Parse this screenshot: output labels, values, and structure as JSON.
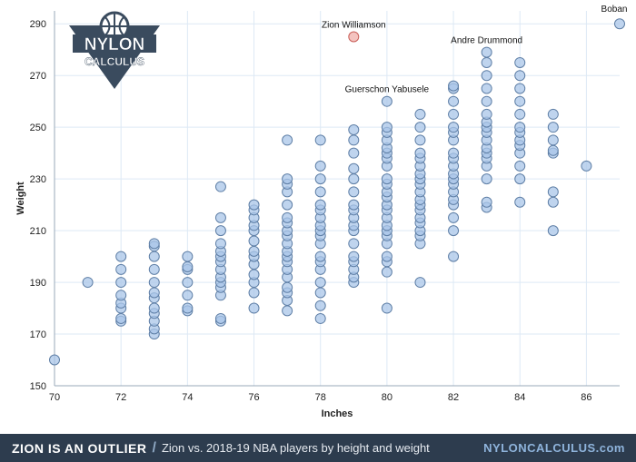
{
  "footer": {
    "title": "ZION IS AN OUTLIER",
    "slash": "/",
    "subtitle": "Zion vs. 2018-19 NBA players by height and weight",
    "site": "NYLONCALCULUS.com"
  },
  "logo": {
    "line1": "NYLON",
    "line2": "CALCULUS"
  },
  "colors": {
    "point_fill": "#a9c5e8",
    "point_stroke": "#5f7fa6",
    "highlight_fill": "#f2b8b4",
    "highlight_stroke": "#c9605a",
    "grid": "#dde9f5",
    "footer_bg": "#2d3c4e",
    "logo": "#3a4b5e"
  },
  "chart_data": {
    "type": "scatter",
    "xlabel": "Inches",
    "ylabel": "Weight",
    "xlim": [
      70,
      87
    ],
    "ylim": [
      150,
      295
    ],
    "xticks": [
      70,
      72,
      74,
      76,
      78,
      80,
      82,
      84,
      86
    ],
    "yticks": [
      150,
      170,
      190,
      210,
      230,
      250,
      270,
      290
    ],
    "grid": true,
    "annotations": [
      {
        "text": "Zion Williamson",
        "x": 79,
        "y": 285
      },
      {
        "text": "Boban",
        "x": 87,
        "y": 290
      },
      {
        "text": "Andre Drummond",
        "x": 83,
        "y": 279
      },
      {
        "text": "Guerschon Yabusele",
        "x": 80,
        "y": 260
      }
    ],
    "highlight": {
      "name": "Zion Williamson",
      "x": 79,
      "y": 285
    },
    "points": [
      [
        70,
        160
      ],
      [
        71,
        190
      ],
      [
        72,
        175
      ],
      [
        72,
        176
      ],
      [
        72,
        180
      ],
      [
        72,
        182
      ],
      [
        72,
        185
      ],
      [
        72,
        190
      ],
      [
        72,
        195
      ],
      [
        72,
        200
      ],
      [
        73,
        170
      ],
      [
        73,
        172
      ],
      [
        73,
        175
      ],
      [
        73,
        178
      ],
      [
        73,
        180
      ],
      [
        73,
        184
      ],
      [
        73,
        186
      ],
      [
        73,
        190
      ],
      [
        73,
        195
      ],
      [
        73,
        200
      ],
      [
        73,
        204
      ],
      [
        73,
        205
      ],
      [
        74,
        179
      ],
      [
        74,
        180
      ],
      [
        74,
        185
      ],
      [
        74,
        190
      ],
      [
        74,
        195
      ],
      [
        74,
        196
      ],
      [
        74,
        200
      ],
      [
        75,
        175
      ],
      [
        75,
        176
      ],
      [
        75,
        185
      ],
      [
        75,
        188
      ],
      [
        75,
        190
      ],
      [
        75,
        192
      ],
      [
        75,
        195
      ],
      [
        75,
        198
      ],
      [
        75,
        200
      ],
      [
        75,
        202
      ],
      [
        75,
        205
      ],
      [
        75,
        210
      ],
      [
        75,
        215
      ],
      [
        75,
        227
      ],
      [
        76,
        180
      ],
      [
        76,
        186
      ],
      [
        76,
        190
      ],
      [
        76,
        193
      ],
      [
        76,
        197
      ],
      [
        76,
        200
      ],
      [
        76,
        202
      ],
      [
        76,
        206
      ],
      [
        76,
        210
      ],
      [
        76,
        212
      ],
      [
        76,
        215
      ],
      [
        76,
        218
      ],
      [
        76,
        220
      ],
      [
        77,
        179
      ],
      [
        77,
        183
      ],
      [
        77,
        186
      ],
      [
        77,
        188
      ],
      [
        77,
        192
      ],
      [
        77,
        195
      ],
      [
        77,
        198
      ],
      [
        77,
        200
      ],
      [
        77,
        202
      ],
      [
        77,
        205
      ],
      [
        77,
        208
      ],
      [
        77,
        210
      ],
      [
        77,
        213
      ],
      [
        77,
        215
      ],
      [
        77,
        220
      ],
      [
        77,
        225
      ],
      [
        77,
        228
      ],
      [
        77,
        230
      ],
      [
        77,
        245
      ],
      [
        78,
        176
      ],
      [
        78,
        181
      ],
      [
        78,
        186
      ],
      [
        78,
        190
      ],
      [
        78,
        195
      ],
      [
        78,
        198
      ],
      [
        78,
        200
      ],
      [
        78,
        205
      ],
      [
        78,
        208
      ],
      [
        78,
        210
      ],
      [
        78,
        212
      ],
      [
        78,
        215
      ],
      [
        78,
        218
      ],
      [
        78,
        220
      ],
      [
        78,
        225
      ],
      [
        78,
        230
      ],
      [
        78,
        235
      ],
      [
        78,
        245
      ],
      [
        79,
        190
      ],
      [
        79,
        192
      ],
      [
        79,
        195
      ],
      [
        79,
        198
      ],
      [
        79,
        200
      ],
      [
        79,
        205
      ],
      [
        79,
        210
      ],
      [
        79,
        212
      ],
      [
        79,
        215
      ],
      [
        79,
        218
      ],
      [
        79,
        220
      ],
      [
        79,
        225
      ],
      [
        79,
        230
      ],
      [
        79,
        234
      ],
      [
        79,
        240
      ],
      [
        79,
        245
      ],
      [
        79,
        249
      ],
      [
        80,
        180
      ],
      [
        80,
        194
      ],
      [
        80,
        198
      ],
      [
        80,
        200
      ],
      [
        80,
        205
      ],
      [
        80,
        208
      ],
      [
        80,
        210
      ],
      [
        80,
        212
      ],
      [
        80,
        215
      ],
      [
        80,
        218
      ],
      [
        80,
        220
      ],
      [
        80,
        223
      ],
      [
        80,
        225
      ],
      [
        80,
        228
      ],
      [
        80,
        230
      ],
      [
        80,
        235
      ],
      [
        80,
        238
      ],
      [
        80,
        240
      ],
      [
        80,
        242
      ],
      [
        80,
        245
      ],
      [
        80,
        248
      ],
      [
        80,
        250
      ],
      [
        80,
        260
      ],
      [
        81,
        190
      ],
      [
        81,
        205
      ],
      [
        81,
        208
      ],
      [
        81,
        210
      ],
      [
        81,
        213
      ],
      [
        81,
        215
      ],
      [
        81,
        218
      ],
      [
        81,
        220
      ],
      [
        81,
        222
      ],
      [
        81,
        225
      ],
      [
        81,
        228
      ],
      [
        81,
        230
      ],
      [
        81,
        232
      ],
      [
        81,
        235
      ],
      [
        81,
        238
      ],
      [
        81,
        240
      ],
      [
        81,
        245
      ],
      [
        81,
        250
      ],
      [
        81,
        255
      ],
      [
        82,
        200
      ],
      [
        82,
        210
      ],
      [
        82,
        215
      ],
      [
        82,
        220
      ],
      [
        82,
        222
      ],
      [
        82,
        225
      ],
      [
        82,
        228
      ],
      [
        82,
        230
      ],
      [
        82,
        232
      ],
      [
        82,
        235
      ],
      [
        82,
        238
      ],
      [
        82,
        240
      ],
      [
        82,
        245
      ],
      [
        82,
        248
      ],
      [
        82,
        250
      ],
      [
        82,
        255
      ],
      [
        82,
        260
      ],
      [
        82,
        265
      ],
      [
        82,
        266
      ],
      [
        83,
        219
      ],
      [
        83,
        221
      ],
      [
        83,
        230
      ],
      [
        83,
        235
      ],
      [
        83,
        238
      ],
      [
        83,
        240
      ],
      [
        83,
        242
      ],
      [
        83,
        245
      ],
      [
        83,
        248
      ],
      [
        83,
        250
      ],
      [
        83,
        252
      ],
      [
        83,
        255
      ],
      [
        83,
        260
      ],
      [
        83,
        265
      ],
      [
        83,
        270
      ],
      [
        83,
        275
      ],
      [
        83,
        279
      ],
      [
        84,
        221
      ],
      [
        84,
        230
      ],
      [
        84,
        235
      ],
      [
        84,
        240
      ],
      [
        84,
        243
      ],
      [
        84,
        245
      ],
      [
        84,
        248
      ],
      [
        84,
        250
      ],
      [
        84,
        255
      ],
      [
        84,
        260
      ],
      [
        84,
        265
      ],
      [
        84,
        270
      ],
      [
        84,
        275
      ],
      [
        85,
        210
      ],
      [
        85,
        221
      ],
      [
        85,
        225
      ],
      [
        85,
        240
      ],
      [
        85,
        241
      ],
      [
        85,
        245
      ],
      [
        85,
        250
      ],
      [
        85,
        255
      ],
      [
        86,
        235
      ],
      [
        87,
        290
      ]
    ]
  }
}
